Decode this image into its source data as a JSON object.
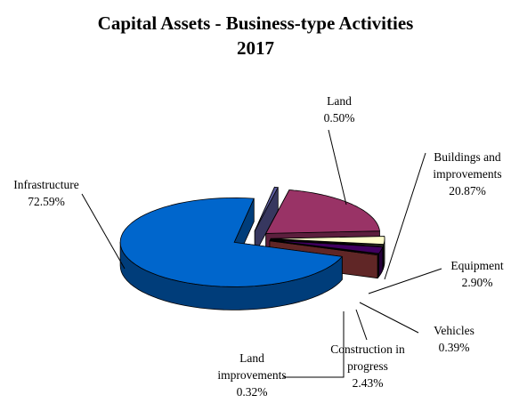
{
  "chart_data": {
    "type": "pie",
    "title": "Capital Assets - Business-type Activities",
    "subtitle": "2017",
    "categories": [
      "Land",
      "Buildings and improvements",
      "Equipment",
      "Vehicles",
      "Construction in progress",
      "Land improvements",
      "Infrastructure"
    ],
    "values": [
      0.5,
      20.87,
      2.9,
      0.39,
      2.43,
      0.32,
      72.59
    ],
    "value_labels": [
      "0.50%",
      "20.87%",
      "2.90%",
      "0.39%",
      "2.43%",
      "0.32%",
      "72.59%"
    ],
    "colors": [
      "#5c5c9e",
      "#993366",
      "#ffffcc",
      "#b8b89a",
      "#400060",
      "#a04040",
      "#0066cc"
    ]
  }
}
